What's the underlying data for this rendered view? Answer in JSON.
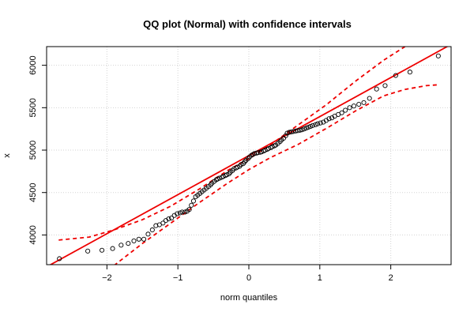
{
  "chart_data": {
    "type": "scatter",
    "title": "QQ plot (Normal) with confidence intervals",
    "xlabel": "norm quantiles",
    "ylabel": "x",
    "xlim": [
      -2.85,
      2.85
    ],
    "ylim": [
      3650,
      6220
    ],
    "x_ticks": [
      -2,
      -1,
      0,
      1,
      2
    ],
    "x_tick_labels": [
      "−2",
      "−1",
      "0",
      "1",
      "2"
    ],
    "y_ticks": [
      4000,
      4500,
      5000,
      5500,
      6000
    ],
    "y_tick_labels": [
      "4000",
      "4500",
      "5000",
      "5500",
      "6000"
    ],
    "grid": true,
    "colors": {
      "reference_line": "#ee0000",
      "confidence_band": "#ee0000",
      "points": "#000000"
    },
    "reference_line": {
      "intercept": 4935,
      "slope": 460
    },
    "confidence_band": {
      "upper": {
        "x": [
          -2.68,
          -2.25,
          -1.9,
          -1.5,
          -1.1,
          -0.7,
          -0.3,
          0.0,
          0.3,
          0.7,
          1.1,
          1.5,
          1.9,
          2.2
        ],
        "y": [
          3940,
          3975,
          4060,
          4180,
          4340,
          4540,
          4760,
          4900,
          5060,
          5300,
          5540,
          5810,
          6060,
          6220
        ]
      },
      "lower": {
        "x": [
          -1.9,
          -1.5,
          -1.1,
          -0.7,
          -0.3,
          0.0,
          0.3,
          0.7,
          1.1,
          1.5,
          1.9,
          2.2,
          2.5,
          2.67
        ],
        "y": [
          3640,
          3900,
          4140,
          4380,
          4610,
          4770,
          4910,
          5070,
          5260,
          5460,
          5640,
          5715,
          5760,
          5770
        ]
      }
    },
    "points": {
      "x": [
        -2.67,
        -2.27,
        -2.07,
        -1.92,
        -1.8,
        -1.7,
        -1.62,
        -1.55,
        -1.48,
        -1.42,
        -1.36,
        -1.31,
        -1.26,
        -1.21,
        -1.17,
        -1.13,
        -1.09,
        -1.05,
        -1.01,
        -0.97,
        -0.94,
        -0.9,
        -0.87,
        -0.84,
        -0.81,
        -0.78,
        -0.75,
        -0.72,
        -0.69,
        -0.66,
        -0.63,
        -0.6,
        -0.57,
        -0.54,
        -0.52,
        -0.49,
        -0.46,
        -0.44,
        -0.41,
        -0.38,
        -0.36,
        -0.33,
        -0.31,
        -0.28,
        -0.26,
        -0.23,
        -0.21,
        -0.18,
        -0.16,
        -0.13,
        -0.11,
        -0.08,
        -0.06,
        -0.04,
        -0.01,
        0.01,
        0.04,
        0.06,
        0.08,
        0.11,
        0.13,
        0.16,
        0.18,
        0.21,
        0.23,
        0.26,
        0.28,
        0.31,
        0.33,
        0.36,
        0.38,
        0.41,
        0.44,
        0.46,
        0.49,
        0.52,
        0.54,
        0.57,
        0.6,
        0.63,
        0.66,
        0.69,
        0.72,
        0.75,
        0.78,
        0.81,
        0.84,
        0.87,
        0.9,
        0.94,
        0.97,
        1.01,
        1.05,
        1.09,
        1.13,
        1.17,
        1.21,
        1.26,
        1.31,
        1.36,
        1.42,
        1.48,
        1.55,
        1.62,
        1.7,
        1.8,
        1.92,
        2.07,
        2.27,
        2.67
      ],
      "y": [
        3720,
        3810,
        3820,
        3840,
        3880,
        3900,
        3930,
        3950,
        3950,
        4010,
        4060,
        4110,
        4120,
        4140,
        4170,
        4190,
        4200,
        4230,
        4250,
        4260,
        4270,
        4270,
        4280,
        4300,
        4350,
        4400,
        4450,
        4470,
        4490,
        4510,
        4530,
        4550,
        4570,
        4590,
        4610,
        4630,
        4650,
        4660,
        4670,
        4680,
        4690,
        4700,
        4710,
        4720,
        4740,
        4760,
        4780,
        4790,
        4800,
        4810,
        4830,
        4840,
        4860,
        4880,
        4900,
        4920,
        4940,
        4950,
        4960,
        4965,
        4970,
        4975,
        4980,
        4990,
        5000,
        5010,
        5020,
        5030,
        5040,
        5050,
        5060,
        5080,
        5100,
        5120,
        5140,
        5170,
        5200,
        5210,
        5215,
        5220,
        5225,
        5230,
        5235,
        5240,
        5250,
        5260,
        5270,
        5280,
        5290,
        5300,
        5310,
        5320,
        5330,
        5350,
        5370,
        5380,
        5400,
        5420,
        5440,
        5470,
        5500,
        5520,
        5540,
        5560,
        5610,
        5720,
        5760,
        5880,
        5920,
        6110
      ]
    }
  }
}
